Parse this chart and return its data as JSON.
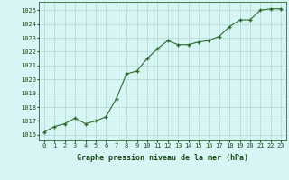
{
  "x": [
    0,
    1,
    2,
    3,
    4,
    5,
    6,
    7,
    8,
    9,
    10,
    11,
    12,
    13,
    14,
    15,
    16,
    17,
    18,
    19,
    20,
    21,
    22,
    23
  ],
  "y": [
    1016.2,
    1016.6,
    1016.8,
    1017.2,
    1016.8,
    1017.0,
    1017.3,
    1018.6,
    1020.4,
    1020.6,
    1021.5,
    1022.2,
    1022.8,
    1022.5,
    1022.5,
    1022.7,
    1022.8,
    1023.1,
    1023.8,
    1024.3,
    1024.3,
    1025.0,
    1025.1,
    1025.1
  ],
  "line_color": "#2d6a2d",
  "marker_color": "#2d6a2d",
  "bg_color": "#d8f5f5",
  "grid_color": "#b0d8cc",
  "xlabel": "Graphe pression niveau de la mer (hPa)",
  "xlabel_color": "#1a4a1a",
  "xtick_labels": [
    "0",
    "1",
    "2",
    "3",
    "4",
    "5",
    "6",
    "7",
    "8",
    "9",
    "10",
    "11",
    "12",
    "13",
    "14",
    "15",
    "16",
    "17",
    "18",
    "19",
    "20",
    "21",
    "22",
    "23"
  ],
  "ytick_labels": [
    "1016",
    "1017",
    "1018",
    "1019",
    "1020",
    "1021",
    "1022",
    "1023",
    "1024",
    "1025"
  ],
  "ylim": [
    1015.6,
    1025.6
  ],
  "xlim": [
    -0.5,
    23.5
  ],
  "yticks": [
    1016,
    1017,
    1018,
    1019,
    1020,
    1021,
    1022,
    1023,
    1024,
    1025
  ],
  "tick_color": "#1a4a1a",
  "spine_color": "#2d6a2d",
  "tick_fontsize": 5.0,
  "xlabel_fontsize": 6.0
}
